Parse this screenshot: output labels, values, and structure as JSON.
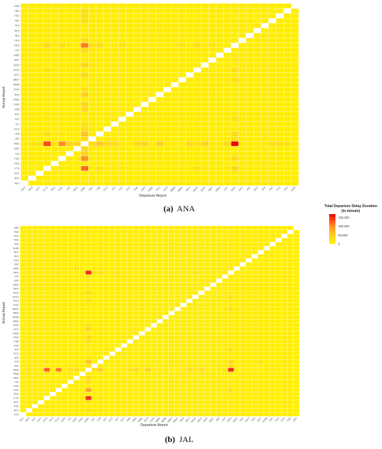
{
  "chart_data": [
    {
      "type": "heatmap",
      "panel_label": "(a)",
      "title": "ANA",
      "xlabel": "Departure Airport",
      "ylabel": "Arrival Airport",
      "airports": [
        "AKJ",
        "AOJ",
        "AXT",
        "CTS",
        "FKS",
        "FUK",
        "HIJ",
        "HKD",
        "HND",
        "ISG",
        "ITM",
        "KCZ",
        "KIJ",
        "KIX",
        "KKJ",
        "KMI",
        "KMJ",
        "KMQ",
        "KOJ",
        "KUH",
        "MMB",
        "MMY",
        "MYJ",
        "NGO",
        "NGS",
        "NRT",
        "OBO",
        "OIT",
        "OKA",
        "OKJ",
        "RIS",
        "SDJ",
        "SHI",
        "TAK",
        "TKS",
        "UBJ",
        "UKB"
      ],
      "cells": [
        {
          "x": "HND",
          "y": "CTS",
          "v": 120000
        },
        {
          "x": "HND",
          "y": "FUK",
          "v": 100000
        },
        {
          "x": "HND",
          "y": "ITM",
          "v": 60000
        },
        {
          "x": "HND",
          "y": "OKA",
          "v": 110000
        },
        {
          "x": "HND",
          "y": "KOJ",
          "v": 45000
        },
        {
          "x": "HND",
          "y": "KMJ",
          "v": 40000
        },
        {
          "x": "HND",
          "y": "HKD",
          "v": 35000
        },
        {
          "x": "HND",
          "y": "NGS",
          "v": 38000
        },
        {
          "x": "HND",
          "y": "HIJ",
          "v": 40000
        },
        {
          "x": "HND",
          "y": "MYJ",
          "v": 35000
        },
        {
          "x": "HND",
          "y": "OIT",
          "v": 30000
        },
        {
          "x": "HND",
          "y": "KMI",
          "v": 32000
        },
        {
          "x": "HND",
          "y": "KCZ",
          "v": 28000
        },
        {
          "x": "HND",
          "y": "TAK",
          "v": 28000
        },
        {
          "x": "HND",
          "y": "UBJ",
          "v": 25000
        },
        {
          "x": "HND",
          "y": "ISG",
          "v": 25000
        },
        {
          "x": "HND",
          "y": "OKJ",
          "v": 25000
        },
        {
          "x": "HND",
          "y": "TKS",
          "v": 25000
        },
        {
          "x": "HND",
          "y": "KIJ",
          "v": 22000
        },
        {
          "x": "HND",
          "y": "KUH",
          "v": 20000
        },
        {
          "x": "CTS",
          "y": "HND",
          "v": 135000
        },
        {
          "x": "FUK",
          "y": "HND",
          "v": 100000
        },
        {
          "x": "OKA",
          "y": "HND",
          "v": 165000
        },
        {
          "x": "ITM",
          "y": "HND",
          "v": 55000
        },
        {
          "x": "KOJ",
          "y": "HND",
          "v": 45000
        },
        {
          "x": "HIJ",
          "y": "HND",
          "v": 40000
        },
        {
          "x": "KMJ",
          "y": "HND",
          "v": 40000
        },
        {
          "x": "HKD",
          "y": "HND",
          "v": 38000
        },
        {
          "x": "NGS",
          "y": "HND",
          "v": 38000
        },
        {
          "x": "MYJ",
          "y": "HND",
          "v": 35000
        },
        {
          "x": "KMI",
          "y": "HND",
          "v": 30000
        },
        {
          "x": "KCZ",
          "y": "HND",
          "v": 30000
        },
        {
          "x": "OIT",
          "y": "HND",
          "v": 30000
        },
        {
          "x": "ISG",
          "y": "HND",
          "v": 28000
        },
        {
          "x": "KIJ",
          "y": "HND",
          "v": 25000
        },
        {
          "x": "TAK",
          "y": "HND",
          "v": 25000
        },
        {
          "x": "UBJ",
          "y": "HND",
          "v": 22000
        },
        {
          "x": "AXT",
          "y": "HND",
          "v": 20000
        },
        {
          "x": "TKS",
          "y": "HND",
          "v": 22000
        },
        {
          "x": "AOJ",
          "y": "HND",
          "v": 18000
        },
        {
          "x": "NGO",
          "y": "HND",
          "v": 15000
        },
        {
          "x": "FKS",
          "y": "HND",
          "v": 15000
        },
        {
          "x": "OKA",
          "y": "CTS",
          "v": 35000
        },
        {
          "x": "OKA",
          "y": "FUK",
          "v": 30000
        },
        {
          "x": "OKA",
          "y": "ITM",
          "v": 32000
        },
        {
          "x": "OKA",
          "y": "NGO",
          "v": 28000
        },
        {
          "x": "OKA",
          "y": "KIX",
          "v": 20000
        },
        {
          "x": "OKA",
          "y": "ISG",
          "v": 25000
        },
        {
          "x": "OKA",
          "y": "MMY",
          "v": 22000
        },
        {
          "x": "CTS",
          "y": "OKA",
          "v": 30000
        },
        {
          "x": "FUK",
          "y": "OKA",
          "v": 25000
        },
        {
          "x": "ITM",
          "y": "OKA",
          "v": 28000
        },
        {
          "x": "NGO",
          "y": "OKA",
          "v": 25000
        },
        {
          "x": "ISG",
          "y": "OKA",
          "v": 22000
        },
        {
          "x": "KIX",
          "y": "OKA",
          "v": 20000
        },
        {
          "x": "NGO",
          "y": "CTS",
          "v": 22000
        },
        {
          "x": "ITM",
          "y": "CTS",
          "v": 22000
        },
        {
          "x": "CTS",
          "y": "ITM",
          "v": 22000
        },
        {
          "x": "CTS",
          "y": "NGO",
          "v": 20000
        },
        {
          "x": "FUK",
          "y": "ITM",
          "v": 15000
        },
        {
          "x": "ITM",
          "y": "FUK",
          "v": 12000
        },
        {
          "x": "FUK",
          "y": "CTS",
          "v": 12000
        },
        {
          "x": "KIX",
          "y": "CTS",
          "v": 10000
        },
        {
          "x": "CTS",
          "y": "KIX",
          "v": 10000
        },
        {
          "x": "ITM",
          "y": "KOJ",
          "v": 10000
        },
        {
          "x": "KOJ",
          "y": "ITM",
          "v": 10000
        },
        {
          "x": "NRT",
          "y": "OKA",
          "v": 15000
        },
        {
          "x": "MMY",
          "y": "OKA",
          "v": 20000
        },
        {
          "x": "OKA",
          "y": "NRT",
          "v": 15000
        }
      ]
    },
    {
      "type": "heatmap",
      "panel_label": "(b)",
      "title": "JAL",
      "xlabel": "Departure Airport",
      "ylabel": "Arrival Airport",
      "airports": [
        "AKJ",
        "AOJ",
        "ASJ",
        "AXT",
        "CTS",
        "FKS",
        "FUK",
        "GAJ",
        "HIJ",
        "HKD",
        "HNA",
        "HND",
        "ISG",
        "ITM",
        "IZO",
        "KCZ",
        "KIX",
        "KKJ",
        "KMI",
        "KMJ",
        "KMQ",
        "KOJ",
        "KUH",
        "MBE",
        "MMB",
        "MMJ",
        "MMY",
        "MSJ",
        "MYJ",
        "NGO",
        "NGS",
        "NRT",
        "OBO",
        "OIR",
        "OIT",
        "OKA",
        "OKD",
        "OKI",
        "OKJ",
        "RIS",
        "SDJ",
        "SHM",
        "TAK",
        "TKN",
        "TKS",
        "TNE",
        "UBJ"
      ],
      "cells": [
        {
          "x": "HND",
          "y": "OKA",
          "v": 150000
        },
        {
          "x": "HND",
          "y": "CTS",
          "v": 145000
        },
        {
          "x": "HND",
          "y": "FUK",
          "v": 90000
        },
        {
          "x": "HND",
          "y": "ITM",
          "v": 55000
        },
        {
          "x": "HND",
          "y": "KOJ",
          "v": 40000
        },
        {
          "x": "HND",
          "y": "KMJ",
          "v": 30000
        },
        {
          "x": "HND",
          "y": "HKD",
          "v": 30000
        },
        {
          "x": "HND",
          "y": "NGS",
          "v": 25000
        },
        {
          "x": "HND",
          "y": "MYJ",
          "v": 22000
        },
        {
          "x": "HND",
          "y": "HIJ",
          "v": 25000
        },
        {
          "x": "HND",
          "y": "KMI",
          "v": 22000
        },
        {
          "x": "HND",
          "y": "OIT",
          "v": 20000
        },
        {
          "x": "HND",
          "y": "AOJ",
          "v": 20000
        },
        {
          "x": "HND",
          "y": "AXT",
          "v": 18000
        },
        {
          "x": "HND",
          "y": "ISG",
          "v": 20000
        },
        {
          "x": "HND",
          "y": "OBO",
          "v": 15000
        },
        {
          "x": "HND",
          "y": "KUH",
          "v": 18000
        },
        {
          "x": "HND",
          "y": "TKS",
          "v": 15000
        },
        {
          "x": "HND",
          "y": "IZO",
          "v": 15000
        },
        {
          "x": "HND",
          "y": "KIX",
          "v": 12000
        },
        {
          "x": "HND",
          "y": "UBJ",
          "v": 15000
        },
        {
          "x": "CTS",
          "y": "HND",
          "v": 125000
        },
        {
          "x": "FUK",
          "y": "HND",
          "v": 110000
        },
        {
          "x": "OKA",
          "y": "HND",
          "v": 150000
        },
        {
          "x": "ITM",
          "y": "HND",
          "v": 50000
        },
        {
          "x": "KOJ",
          "y": "HND",
          "v": 40000
        },
        {
          "x": "KMJ",
          "y": "HND",
          "v": 30000
        },
        {
          "x": "HKD",
          "y": "HND",
          "v": 28000
        },
        {
          "x": "HIJ",
          "y": "HND",
          "v": 25000
        },
        {
          "x": "NGS",
          "y": "HND",
          "v": 25000
        },
        {
          "x": "MYJ",
          "y": "HND",
          "v": 22000
        },
        {
          "x": "AOJ",
          "y": "HND",
          "v": 20000
        },
        {
          "x": "ISG",
          "y": "HND",
          "v": 22000
        },
        {
          "x": "KMI",
          "y": "HND",
          "v": 20000
        },
        {
          "x": "OIT",
          "y": "HND",
          "v": 20000
        },
        {
          "x": "AXT",
          "y": "HND",
          "v": 15000
        },
        {
          "x": "NGO",
          "y": "HND",
          "v": 12000
        },
        {
          "x": "MMB",
          "y": "HND",
          "v": 12000
        },
        {
          "x": "TAK",
          "y": "HND",
          "v": 12000
        },
        {
          "x": "OKA",
          "y": "ITM",
          "v": 30000
        },
        {
          "x": "OKA",
          "y": "KIX",
          "v": 20000
        },
        {
          "x": "OKA",
          "y": "NGO",
          "v": 22000
        },
        {
          "x": "OKA",
          "y": "FUK",
          "v": 20000
        },
        {
          "x": "OKA",
          "y": "ISG",
          "v": 25000
        },
        {
          "x": "OKA",
          "y": "MMY",
          "v": 20000
        },
        {
          "x": "ITM",
          "y": "OKA",
          "v": 25000
        },
        {
          "x": "NGO",
          "y": "OKA",
          "v": 20000
        },
        {
          "x": "FUK",
          "y": "OKA",
          "v": 18000
        },
        {
          "x": "ISG",
          "y": "OKA",
          "v": 22000
        },
        {
          "x": "KIX",
          "y": "OKA",
          "v": 18000
        },
        {
          "x": "SDJ",
          "y": "ITM",
          "v": 20000
        },
        {
          "x": "ITM",
          "y": "SDJ",
          "v": 15000
        },
        {
          "x": "ITM",
          "y": "CTS",
          "v": 18000
        },
        {
          "x": "CTS",
          "y": "ITM",
          "v": 18000
        },
        {
          "x": "FUK",
          "y": "CTS",
          "v": 12000
        },
        {
          "x": "ITM",
          "y": "FUK",
          "v": 12000
        },
        {
          "x": "AXT",
          "y": "ITM",
          "v": 10000
        },
        {
          "x": "ASJ",
          "y": "KOJ",
          "v": 15000
        },
        {
          "x": "HKD",
          "y": "OKD",
          "v": 22000
        },
        {
          "x": "ITM",
          "y": "KOJ",
          "v": 12000
        },
        {
          "x": "ITM",
          "y": "AOJ",
          "v": 12000
        }
      ]
    }
  ],
  "captions": [
    {
      "label": "(a)",
      "text": "ANA"
    },
    {
      "label": "(b)",
      "text": "JAL"
    }
  ],
  "legend": {
    "title_line1": "Total Departure Delay Duration",
    "title_line2": "(in minute)",
    "min": 0,
    "max": 170000,
    "ticks": [
      {
        "value": 150000,
        "label": "150,000"
      },
      {
        "value": 100000,
        "label": "100,000"
      },
      {
        "value": 50000,
        "label": "50,000"
      },
      {
        "value": 0,
        "label": "0"
      }
    ],
    "colors": [
      "#fff200",
      "#ffd21e",
      "#ffac28",
      "#ff5a1e",
      "#e60000"
    ]
  }
}
